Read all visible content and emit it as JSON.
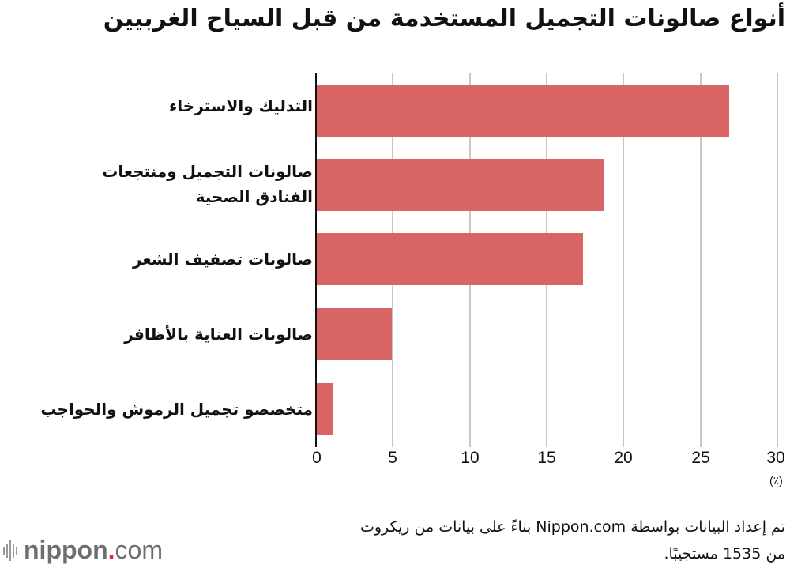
{
  "title": "أنواع صالونات التجميل المستخدمة من قبل السياح الغربيين",
  "chart_data": {
    "type": "bar",
    "orientation": "horizontal",
    "title": "أنواع صالونات التجميل المستخدمة من قبل السياح الغربيين",
    "categories": [
      "التدليك والاسترخاء",
      "صالونات التجميل ومنتجعات الفنادق الصحية",
      "صالونات تصفيف الشعر",
      "صالونات العناية بالأظافر",
      "متخصصو تجميل الرموش والحواجب"
    ],
    "values": [
      26.8,
      18.7,
      17.3,
      4.9,
      1.1
    ],
    "xlabel": "(٪)",
    "ylabel": "",
    "xlim": [
      0,
      30
    ],
    "xticks": [
      "0",
      "5",
      "10",
      "15",
      "20",
      "25",
      "30"
    ],
    "grid": true,
    "bar_color": "#d96464"
  },
  "labels": {
    "cat0": "التدليك والاسترخاء",
    "cat1_line1": "صالونات التجميل ومنتجعات",
    "cat1_line2": "الفنادق الصحية",
    "cat2": "صالونات تصفيف الشعر",
    "cat3": "صالونات العناية بالأظافر",
    "cat4": "متخصصو تجميل الرموش والحواجب"
  },
  "ticks": [
    "0",
    "5",
    "10",
    "15",
    "20",
    "25",
    "30"
  ],
  "unit": "(٪)",
  "note": {
    "line1": "تم إعداد البيانات بواسطة Nippon.com بناءً على بيانات من ريكروت",
    "line2": "من 1535 مستجيبًا."
  },
  "logo": {
    "brand": "nippon",
    "dot": ".",
    "tld": "com"
  }
}
